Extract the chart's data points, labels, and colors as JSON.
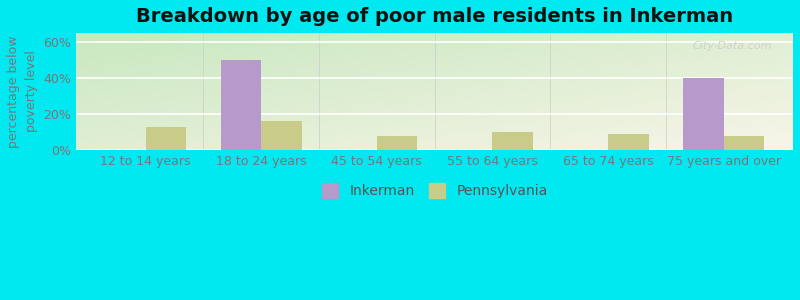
{
  "title": "Breakdown by age of poor male residents in Inkerman",
  "categories": [
    "12 to 14 years",
    "18 to 24 years",
    "45 to 54 years",
    "55 to 64 years",
    "65 to 74 years",
    "75 years and over"
  ],
  "inkerman_values": [
    0,
    50,
    0,
    0,
    0,
    40
  ],
  "pennsylvania_values": [
    13,
    16,
    8,
    10,
    9,
    8
  ],
  "inkerman_color": "#b899cc",
  "pennsylvania_color": "#c8cc88",
  "ylabel": "percentage below\npoverty level",
  "ylim": [
    0,
    65
  ],
  "yticks": [
    0,
    20,
    40,
    60
  ],
  "ytick_labels": [
    "0%",
    "20%",
    "40%",
    "60%"
  ],
  "outer_background": "#00e8f0",
  "bar_width": 0.35,
  "title_fontsize": 14,
  "axis_fontsize": 9,
  "tick_fontsize": 9,
  "legend_fontsize": 10
}
